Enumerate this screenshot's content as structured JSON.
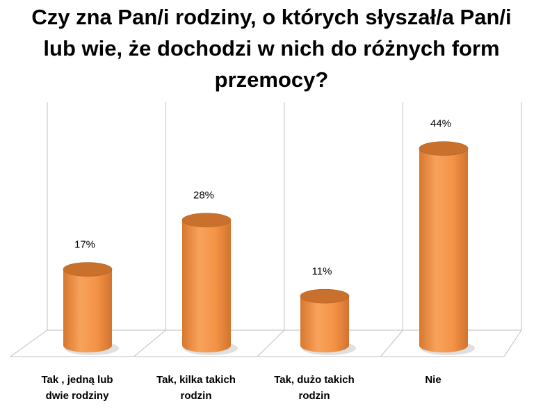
{
  "title_lines": [
    "Czy zna Pan/i rodziny, o których słyszał/a Pan/i",
    "lub wie, że dochodzi w nich do różnych form",
    "przemocy?"
  ],
  "colors": {
    "bar_body": "#f39245",
    "bar_top": "#c8702c",
    "grid": "#bfbfbf",
    "floor": "#bfbfbf"
  },
  "chart_data": {
    "type": "bar",
    "style": "3d-cylinder",
    "title": "Czy zna Pan/i rodziny, o których słyszał/a Pan/i lub wie, że dochodzi w nich do różnych form przemocy?",
    "categories": [
      [
        "Tak , jedną lub",
        "dwie rodziny"
      ],
      [
        "Tak, kilka takich",
        "rodzin"
      ],
      [
        "Tak, dużo takich",
        "rodzin"
      ],
      [
        "Nie"
      ]
    ],
    "values": [
      17,
      28,
      11,
      44
    ],
    "data_labels": [
      "17%",
      "28%",
      "11%",
      "44%"
    ],
    "ylim": [
      0,
      50
    ],
    "grid": "vertical-only",
    "legend": "none"
  }
}
